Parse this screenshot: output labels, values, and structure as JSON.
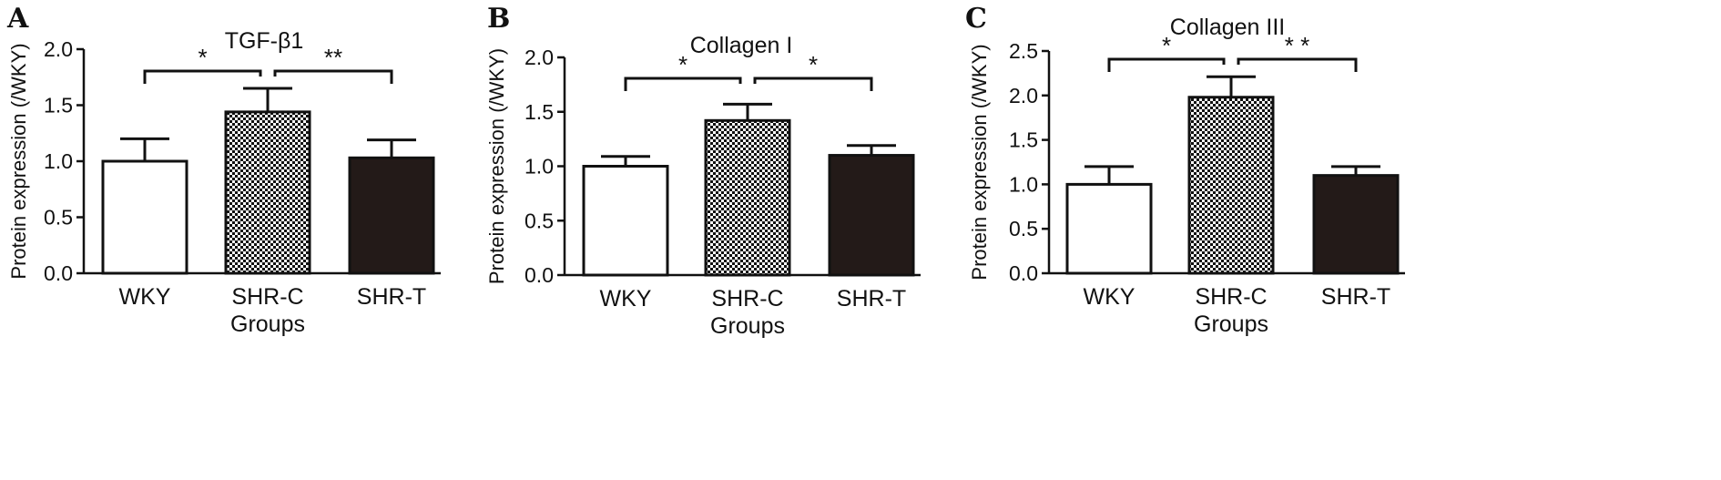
{
  "chart_data": [
    {
      "type": "bar",
      "panel": "A",
      "title": "TGF-β1",
      "xlabel": "Groups",
      "ylabel": "Protein expression (/WKY)",
      "ylim": [
        0,
        2.0
      ],
      "yticks": [
        "0.0",
        "0.5",
        "1.0",
        "1.5",
        "2.0"
      ],
      "categories": [
        "WKY",
        "SHR-C",
        "SHR-T"
      ],
      "values": [
        1.0,
        1.44,
        1.03
      ],
      "errors": [
        0.2,
        0.21,
        0.16
      ],
      "significance": [
        {
          "from": 0,
          "to": 1,
          "label": "*"
        },
        {
          "from": 1,
          "to": 2,
          "label": "**"
        }
      ]
    },
    {
      "type": "bar",
      "panel": "B",
      "title": "Collagen I",
      "xlabel": "Groups",
      "ylabel": "Protein expression (/WKY)",
      "ylim": [
        0,
        2.0
      ],
      "yticks": [
        "0.0",
        "0.5",
        "1.0",
        "1.5",
        "2.0"
      ],
      "categories": [
        "WKY",
        "SHR-C",
        "SHR-T"
      ],
      "values": [
        1.0,
        1.42,
        1.1
      ],
      "errors": [
        0.09,
        0.15,
        0.09
      ],
      "significance": [
        {
          "from": 0,
          "to": 1,
          "label": "*"
        },
        {
          "from": 1,
          "to": 2,
          "label": "*"
        }
      ]
    },
    {
      "type": "bar",
      "panel": "C",
      "title": "Collagen III",
      "xlabel": "Groups",
      "ylabel": "Protein expression (/WKY)",
      "ylim": [
        0,
        2.5
      ],
      "yticks": [
        "0.0",
        "0.5",
        "1.0",
        "1.5",
        "2.0",
        "2.5"
      ],
      "categories": [
        "WKY",
        "SHR-C",
        "SHR-T"
      ],
      "values": [
        1.0,
        1.98,
        1.1
      ],
      "errors": [
        0.2,
        0.23,
        0.1
      ],
      "significance": [
        {
          "from": 0,
          "to": 1,
          "label": "*"
        },
        {
          "from": 1,
          "to": 2,
          "label": "* *"
        }
      ]
    }
  ],
  "bar_styles": [
    {
      "fill": "#ffffff",
      "pattern": "none"
    },
    {
      "fill": "checkered",
      "pattern": "checker"
    },
    {
      "fill": "#231a18",
      "pattern": "none"
    }
  ],
  "colors": {
    "ink": "#111111",
    "dark_bar": "#231a18"
  }
}
